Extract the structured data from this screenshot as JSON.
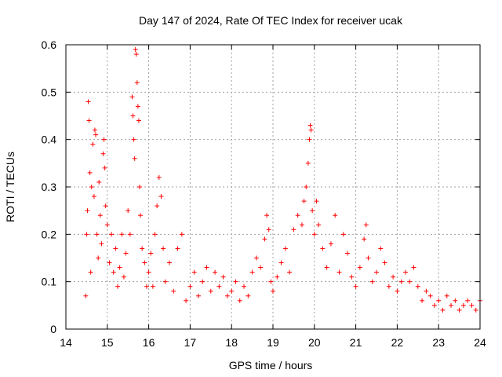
{
  "chart_data": {
    "type": "scatter",
    "title": "Day 147 of 2024, Rate Of TEC Index for receiver ucak",
    "xlabel": "GPS time / hours",
    "ylabel": "ROTI / TECUs",
    "xlim": [
      14,
      24
    ],
    "ylim": [
      0,
      0.6
    ],
    "x_ticks": [
      "14",
      "15",
      "16",
      "17",
      "18",
      "19",
      "20",
      "21",
      "22",
      "23",
      "24"
    ],
    "y_ticks": [
      "0",
      "0.1",
      "0.2",
      "0.3",
      "0.4",
      "0.5",
      "0.6"
    ],
    "grid": true,
    "marker": "+",
    "colors": {
      "series": "#ff0000",
      "grid": "#a0a0a0",
      "axes": "#000000"
    },
    "series": [
      {
        "points": [
          [
            14.48,
            0.07
          ],
          [
            14.5,
            0.2
          ],
          [
            14.52,
            0.25
          ],
          [
            14.54,
            0.48
          ],
          [
            14.56,
            0.44
          ],
          [
            14.58,
            0.33
          ],
          [
            14.6,
            0.12
          ],
          [
            14.62,
            0.3
          ],
          [
            14.65,
            0.39
          ],
          [
            14.68,
            0.28
          ],
          [
            14.7,
            0.42
          ],
          [
            14.72,
            0.41
          ],
          [
            14.75,
            0.2
          ],
          [
            14.78,
            0.15
          ],
          [
            14.8,
            0.31
          ],
          [
            14.83,
            0.24
          ],
          [
            14.86,
            0.18
          ],
          [
            14.9,
            0.37
          ],
          [
            14.92,
            0.4
          ],
          [
            14.94,
            0.34
          ],
          [
            14.96,
            0.26
          ],
          [
            15.0,
            0.22
          ],
          [
            15.05,
            0.14
          ],
          [
            15.1,
            0.2
          ],
          [
            15.15,
            0.12
          ],
          [
            15.2,
            0.17
          ],
          [
            15.25,
            0.09
          ],
          [
            15.3,
            0.13
          ],
          [
            15.35,
            0.2
          ],
          [
            15.4,
            0.11
          ],
          [
            15.45,
            0.16
          ],
          [
            15.5,
            0.25
          ],
          [
            15.55,
            0.2
          ],
          [
            15.6,
            0.49
          ],
          [
            15.62,
            0.45
          ],
          [
            15.64,
            0.4
          ],
          [
            15.66,
            0.36
          ],
          [
            15.68,
            0.59
          ],
          [
            15.7,
            0.58
          ],
          [
            15.72,
            0.52
          ],
          [
            15.74,
            0.47
          ],
          [
            15.76,
            0.44
          ],
          [
            15.78,
            0.3
          ],
          [
            15.8,
            0.24
          ],
          [
            15.84,
            0.17
          ],
          [
            15.9,
            0.14
          ],
          [
            15.95,
            0.09
          ],
          [
            16.0,
            0.12
          ],
          [
            16.05,
            0.16
          ],
          [
            16.1,
            0.09
          ],
          [
            16.15,
            0.2
          ],
          [
            16.2,
            0.26
          ],
          [
            16.25,
            0.32
          ],
          [
            16.3,
            0.28
          ],
          [
            16.35,
            0.17
          ],
          [
            16.4,
            0.1
          ],
          [
            16.5,
            0.14
          ],
          [
            16.6,
            0.08
          ],
          [
            16.7,
            0.17
          ],
          [
            16.8,
            0.2
          ],
          [
            16.9,
            0.06
          ],
          [
            17.0,
            0.09
          ],
          [
            17.1,
            0.12
          ],
          [
            17.2,
            0.07
          ],
          [
            17.3,
            0.1
          ],
          [
            17.4,
            0.13
          ],
          [
            17.5,
            0.08
          ],
          [
            17.6,
            0.12
          ],
          [
            17.7,
            0.09
          ],
          [
            17.8,
            0.11
          ],
          [
            17.9,
            0.07
          ],
          [
            18.0,
            0.08
          ],
          [
            18.1,
            0.1
          ],
          [
            18.2,
            0.06
          ],
          [
            18.3,
            0.09
          ],
          [
            18.4,
            0.07
          ],
          [
            18.5,
            0.12
          ],
          [
            18.6,
            0.15
          ],
          [
            18.7,
            0.13
          ],
          [
            18.8,
            0.19
          ],
          [
            18.85,
            0.24
          ],
          [
            18.9,
            0.21
          ],
          [
            18.95,
            0.1
          ],
          [
            19.0,
            0.08
          ],
          [
            19.1,
            0.11
          ],
          [
            19.2,
            0.14
          ],
          [
            19.3,
            0.17
          ],
          [
            19.4,
            0.12
          ],
          [
            19.5,
            0.21
          ],
          [
            19.6,
            0.24
          ],
          [
            19.7,
            0.22
          ],
          [
            19.75,
            0.27
          ],
          [
            19.8,
            0.3
          ],
          [
            19.85,
            0.35
          ],
          [
            19.88,
            0.4
          ],
          [
            19.9,
            0.43
          ],
          [
            19.92,
            0.42
          ],
          [
            19.95,
            0.25
          ],
          [
            20.0,
            0.2
          ],
          [
            20.05,
            0.27
          ],
          [
            20.1,
            0.22
          ],
          [
            20.2,
            0.17
          ],
          [
            20.3,
            0.13
          ],
          [
            20.4,
            0.18
          ],
          [
            20.5,
            0.24
          ],
          [
            20.6,
            0.12
          ],
          [
            20.7,
            0.2
          ],
          [
            20.8,
            0.16
          ],
          [
            20.9,
            0.11
          ],
          [
            21.0,
            0.09
          ],
          [
            21.1,
            0.13
          ],
          [
            21.2,
            0.19
          ],
          [
            21.25,
            0.22
          ],
          [
            21.3,
            0.15
          ],
          [
            21.4,
            0.1
          ],
          [
            21.5,
            0.12
          ],
          [
            21.6,
            0.17
          ],
          [
            21.7,
            0.14
          ],
          [
            21.8,
            0.09
          ],
          [
            21.9,
            0.11
          ],
          [
            22.0,
            0.08
          ],
          [
            22.1,
            0.1
          ],
          [
            22.2,
            0.12
          ],
          [
            22.3,
            0.1
          ],
          [
            22.4,
            0.13
          ],
          [
            22.5,
            0.09
          ],
          [
            22.6,
            0.06
          ],
          [
            22.7,
            0.08
          ],
          [
            22.8,
            0.07
          ],
          [
            22.9,
            0.05
          ],
          [
            23.0,
            0.06
          ],
          [
            23.1,
            0.04
          ],
          [
            23.2,
            0.07
          ],
          [
            23.3,
            0.05
          ],
          [
            23.4,
            0.06
          ],
          [
            23.5,
            0.04
          ],
          [
            23.6,
            0.05
          ],
          [
            23.7,
            0.06
          ],
          [
            23.8,
            0.05
          ],
          [
            23.9,
            0.04
          ],
          [
            24.0,
            0.06
          ]
        ]
      }
    ]
  }
}
